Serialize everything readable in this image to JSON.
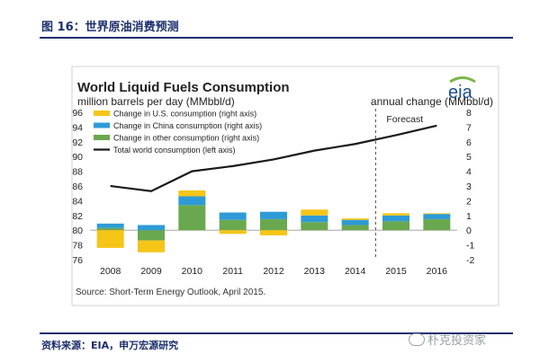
{
  "figure": {
    "title": "图 16：世界原油消费预测",
    "source": "资料来源：EIA，申万宏源研究",
    "watermark": "朴克投资家"
  },
  "logo": {
    "text": "eia",
    "color": "#1a4f8b",
    "accent": "#7ab648"
  },
  "chart_data": {
    "type": "bar",
    "title": "World Liquid Fuels Consumption",
    "left_axis_label": "million barrels per day (MMbbl/d)",
    "right_axis_label": "annual change (MMbbl/d)",
    "forecast_label": "Forecast",
    "footnote": "Source: Short-Term Energy Outlook, April 2015.",
    "categories": [
      "2008",
      "2009",
      "2010",
      "2011",
      "2012",
      "2013",
      "2014",
      "2015",
      "2016"
    ],
    "left_ylim": [
      76,
      96
    ],
    "left_ticks": [
      76,
      78,
      80,
      82,
      84,
      86,
      88,
      90,
      92,
      94,
      96
    ],
    "right_ylim": [
      -2,
      8
    ],
    "right_ticks": [
      -2,
      -1,
      0,
      1,
      2,
      3,
      4,
      5,
      6,
      7,
      8
    ],
    "forecast_start_index": 7,
    "series": [
      {
        "name": "Change in U.S. consumption (right axis)",
        "color": "#f5c518",
        "axis": "right",
        "values": [
          -1.2,
          -0.8,
          0.4,
          -0.25,
          -0.35,
          0.4,
          0.1,
          0.15,
          0.05
        ]
      },
      {
        "name": "Change in China consumption (right axis)",
        "color": "#2e9bd6",
        "axis": "right",
        "values": [
          0.3,
          0.35,
          0.6,
          0.5,
          0.5,
          0.45,
          0.35,
          0.4,
          0.35
        ]
      },
      {
        "name": "Change in other consumption (right axis)",
        "color": "#6aa84f",
        "axis": "right",
        "values": [
          0.15,
          -0.7,
          1.7,
          0.7,
          0.75,
          0.55,
          0.35,
          0.6,
          0.75
        ]
      },
      {
        "name": "Total world consumption (left axis)",
        "color": "#1a1a1a",
        "axis": "left",
        "type": "line",
        "values": [
          86.0,
          85.3,
          88.0,
          88.7,
          89.6,
          90.8,
          91.7,
          92.9,
          94.2
        ]
      }
    ],
    "legend_position": "top-left"
  }
}
